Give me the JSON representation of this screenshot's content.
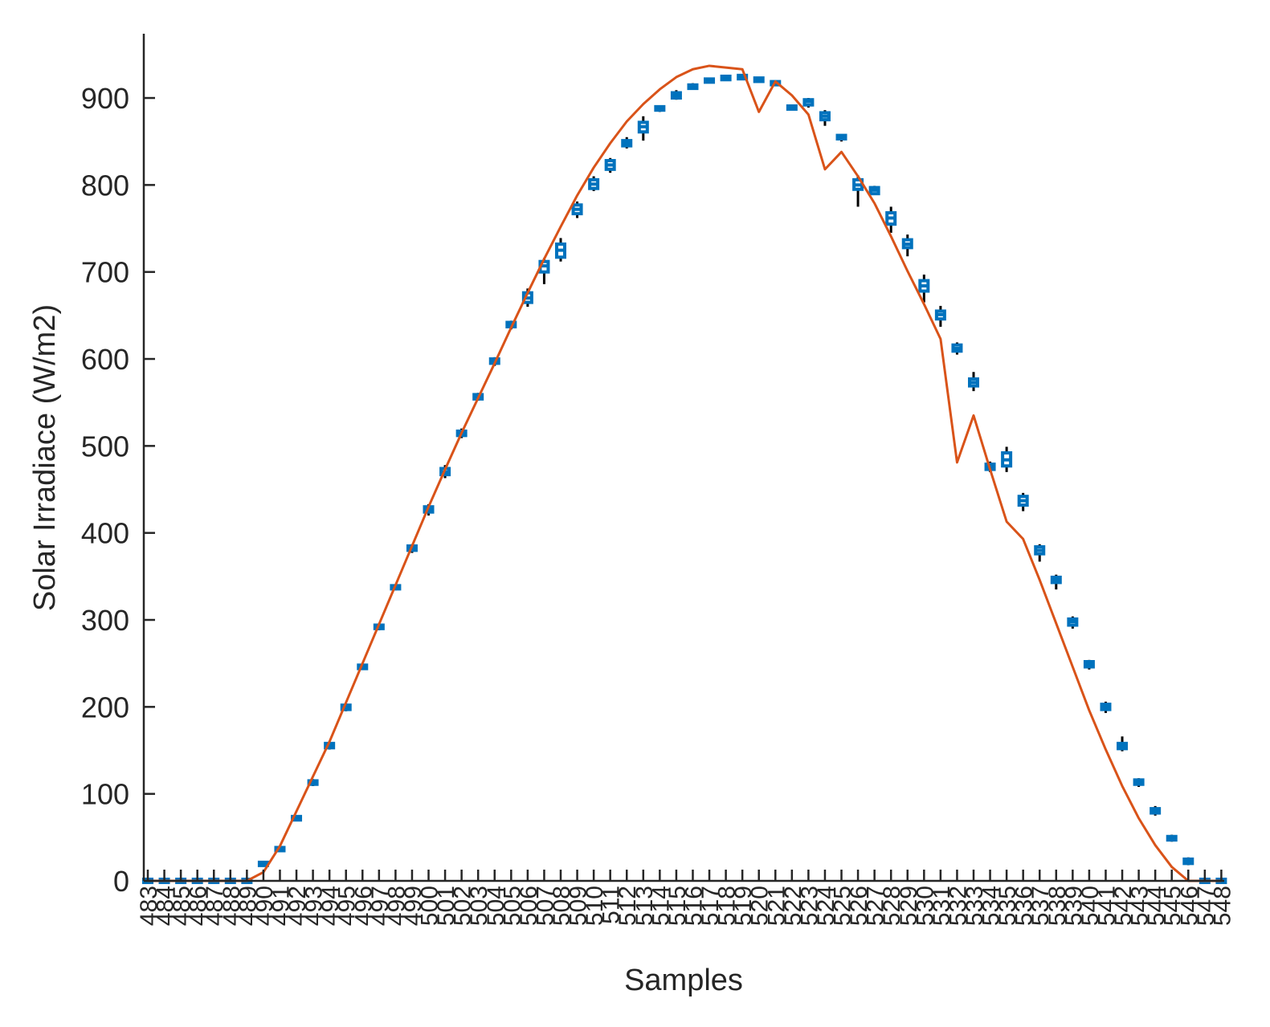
{
  "chart_data": {
    "type": "box",
    "xlabel": "Samples",
    "ylabel": "Solar Irradiace (W/m2)",
    "ylim": [
      0,
      960
    ],
    "yticks": [
      0,
      100,
      200,
      300,
      400,
      500,
      600,
      700,
      800,
      900
    ],
    "grid": false,
    "colors": {
      "box": "#0072BD",
      "whisker": "#000000",
      "line": "#D95319",
      "axis": "#262626"
    },
    "categories": [
      "483",
      "484",
      "485",
      "486",
      "487",
      "488",
      "489",
      "490",
      "491",
      "492",
      "493",
      "494",
      "495",
      "496",
      "497",
      "498",
      "499",
      "500",
      "501",
      "502",
      "503",
      "504",
      "505",
      "506",
      "507",
      "508",
      "509",
      "510",
      "511",
      "512",
      "513",
      "514",
      "515",
      "516",
      "517",
      "518",
      "519",
      "520",
      "521",
      "522",
      "523",
      "524",
      "525",
      "526",
      "527",
      "528",
      "529",
      "530",
      "531",
      "532",
      "533",
      "534",
      "535",
      "536",
      "537",
      "538",
      "539",
      "540",
      "541",
      "542",
      "543",
      "544",
      "545",
      "546",
      "547",
      "548"
    ],
    "series": [
      {
        "median": [
          0,
          0,
          0,
          0,
          0,
          0,
          0,
          20,
          37,
          72,
          113,
          155,
          200,
          246,
          292,
          338,
          383,
          427,
          470,
          515,
          557,
          598,
          640,
          670,
          707,
          725,
          772,
          801,
          823,
          848,
          867,
          888,
          903,
          913,
          920,
          923,
          924,
          921,
          917,
          889,
          896,
          879,
          855,
          800,
          794,
          762,
          732,
          684,
          651,
          612,
          573,
          476,
          484,
          437,
          380,
          346,
          298,
          249,
          200,
          155,
          113,
          80,
          49,
          22,
          0,
          0
        ],
        "q1": [
          0,
          0,
          0,
          0,
          0,
          0,
          0,
          18,
          35,
          70,
          111,
          153,
          197,
          244,
          290,
          336,
          380,
          424,
          467,
          512,
          554,
          595,
          637,
          665,
          700,
          717,
          767,
          796,
          818,
          845,
          861,
          886,
          900,
          911,
          919,
          921,
          922,
          919,
          916,
          888,
          892,
          875,
          853,
          795,
          790,
          755,
          728,
          678,
          646,
          609,
          569,
          473,
          477,
          432,
          376,
          343,
          294,
          246,
          197,
          152,
          111,
          78,
          47,
          20,
          0,
          0
        ],
        "q3": [
          0,
          0,
          0,
          0,
          0,
          0,
          0,
          21,
          38,
          74,
          115,
          158,
          202,
          248,
          294,
          339,
          385,
          430,
          474,
          517,
          559,
          600,
          642,
          676,
          712,
          732,
          777,
          806,
          828,
          851,
          872,
          890,
          906,
          915,
          921,
          925,
          926,
          923,
          918,
          890,
          898,
          883,
          857,
          806,
          797,
          768,
          737,
          690,
          655,
          616,
          577,
          479,
          492,
          442,
          384,
          349,
          301,
          252,
          203,
          158,
          116,
          83,
          51,
          25,
          0,
          0
        ],
        "min": [
          0,
          0,
          0,
          0,
          0,
          0,
          0,
          17,
          34,
          69,
          109,
          151,
          195,
          243,
          288,
          334,
          377,
          420,
          463,
          509,
          552,
          592,
          634,
          660,
          686,
          712,
          762,
          793,
          814,
          842,
          851,
          884,
          898,
          910,
          918,
          920,
          921,
          918,
          915,
          887,
          889,
          868,
          850,
          775,
          789,
          745,
          718,
          665,
          637,
          605,
          563,
          470,
          470,
          425,
          367,
          335,
          290,
          243,
          193,
          149,
          108,
          75,
          45,
          18,
          0,
          0
        ],
        "max": [
          0,
          0,
          0,
          0,
          0,
          0,
          0,
          22,
          39,
          75,
          117,
          160,
          204,
          250,
          296,
          341,
          387,
          433,
          478,
          520,
          561,
          602,
          644,
          681,
          716,
          739,
          781,
          810,
          831,
          855,
          879,
          891,
          909,
          917,
          922,
          926,
          927,
          924,
          919,
          891,
          900,
          886,
          858,
          811,
          799,
          775,
          743,
          697,
          661,
          619,
          585,
          482,
          499,
          446,
          387,
          352,
          304,
          254,
          206,
          166,
          118,
          86,
          53,
          27,
          0,
          0
        ],
        "line": [
          0,
          0,
          0,
          0,
          0,
          0,
          0,
          10,
          40,
          80,
          120,
          160,
          205,
          250,
          295,
          340,
          385,
          430,
          473,
          515,
          555,
          595,
          636,
          676,
          715,
          752,
          788,
          820,
          848,
          873,
          893,
          910,
          924,
          933,
          937,
          935,
          933,
          884,
          919,
          903,
          881,
          818,
          838,
          810,
          779,
          741,
          701,
          663,
          623,
          481,
          535,
          473,
          413,
          393,
          346,
          296,
          246,
          196,
          151,
          109,
          72,
          41,
          16,
          0,
          0,
          0
        ]
      }
    ]
  }
}
